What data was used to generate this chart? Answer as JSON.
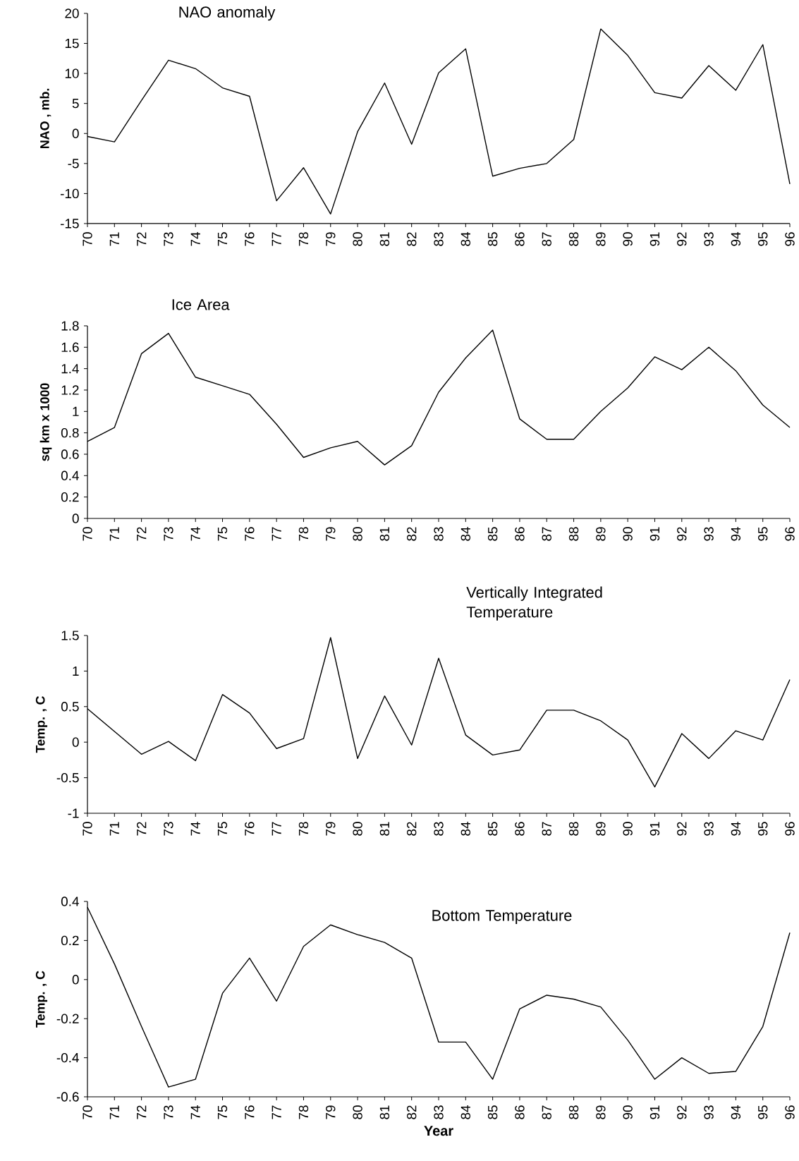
{
  "chart_data": [
    {
      "type": "line",
      "title": "NAO anomaly",
      "ylabel": "NAO , mb.",
      "color": "#000000",
      "categories": [
        "70",
        "71",
        "72",
        "73",
        "74",
        "75",
        "76",
        "77",
        "78",
        "79",
        "80",
        "81",
        "82",
        "83",
        "84",
        "85",
        "86",
        "87",
        "88",
        "89",
        "90",
        "91",
        "92",
        "93",
        "94",
        "95",
        "96"
      ],
      "values": [
        -0.5,
        -1.4,
        5.5,
        12.2,
        10.8,
        7.6,
        6.2,
        -11.2,
        -5.7,
        -13.4,
        0.3,
        8.4,
        -1.8,
        10.1,
        14.1,
        -7.1,
        -5.8,
        -5.0,
        -1.0,
        17.4,
        13.0,
        6.8,
        5.9,
        11.3,
        7.2,
        14.8,
        -8.4
      ],
      "ylim": [
        -15,
        20
      ],
      "yticks": [
        -15,
        -10,
        -5,
        0,
        5,
        10,
        15,
        20
      ]
    },
    {
      "type": "line",
      "title": "Ice Area",
      "ylabel": "sq km x 1000",
      "color": "#000000",
      "categories": [
        "70",
        "71",
        "72",
        "73",
        "74",
        "75",
        "76",
        "77",
        "78",
        "79",
        "80",
        "81",
        "82",
        "83",
        "84",
        "85",
        "86",
        "87",
        "88",
        "89",
        "90",
        "91",
        "92",
        "93",
        "94",
        "95",
        "96"
      ],
      "values": [
        0.72,
        0.85,
        1.54,
        1.73,
        1.32,
        1.24,
        1.16,
        0.88,
        0.57,
        0.66,
        0.72,
        0.5,
        0.68,
        1.18,
        1.5,
        1.76,
        0.93,
        0.74,
        0.74,
        1.0,
        1.22,
        1.51,
        1.39,
        1.6,
        1.38,
        1.06,
        0.85
      ],
      "ylim": [
        0,
        1.8
      ],
      "yticks": [
        0,
        0.2,
        0.4,
        0.6,
        0.8,
        1,
        1.2,
        1.4,
        1.6,
        1.8
      ]
    },
    {
      "type": "line",
      "title": "Vertically Integrated Temperature",
      "ylabel": "Temp. , C",
      "color": "#000000",
      "categories": [
        "70",
        "71",
        "72",
        "73",
        "74",
        "75",
        "76",
        "77",
        "78",
        "79",
        "80",
        "81",
        "82",
        "83",
        "84",
        "85",
        "86",
        "87",
        "88",
        "89",
        "90",
        "91",
        "92",
        "93",
        "94",
        "95",
        "96"
      ],
      "values": [
        0.47,
        0.15,
        -0.17,
        0.01,
        -0.26,
        0.67,
        0.41,
        -0.09,
        0.05,
        1.47,
        -0.23,
        0.65,
        -0.04,
        1.18,
        0.1,
        -0.18,
        -0.11,
        0.45,
        0.45,
        0.3,
        0.03,
        -0.63,
        0.12,
        -0.23,
        0.16,
        0.03,
        0.88
      ],
      "ylim": [
        -1,
        1.5
      ],
      "yticks": [
        -1,
        -0.5,
        0,
        0.5,
        1,
        1.5
      ]
    },
    {
      "type": "line",
      "title": "Bottom Temperature",
      "ylabel": "Temp. , C",
      "xlabel": "Year",
      "color": "#000000",
      "categories": [
        "70",
        "71",
        "72",
        "73",
        "74",
        "75",
        "76",
        "77",
        "78",
        "79",
        "80",
        "81",
        "82",
        "83",
        "84",
        "85",
        "86",
        "87",
        "88",
        "89",
        "90",
        "91",
        "92",
        "93",
        "94",
        "95",
        "96"
      ],
      "values": [
        0.37,
        0.08,
        -0.24,
        -0.55,
        -0.51,
        -0.07,
        0.11,
        -0.11,
        0.17,
        0.28,
        0.23,
        0.19,
        0.11,
        -0.32,
        -0.32,
        -0.51,
        -0.15,
        -0.08,
        -0.1,
        -0.14,
        -0.31,
        -0.51,
        -0.4,
        -0.48,
        -0.47,
        -0.24,
        0.24
      ],
      "ylim": [
        -0.6,
        0.4
      ],
      "yticks": [
        -0.6,
        -0.4,
        -0.2,
        0,
        0.2,
        0.4
      ]
    }
  ]
}
